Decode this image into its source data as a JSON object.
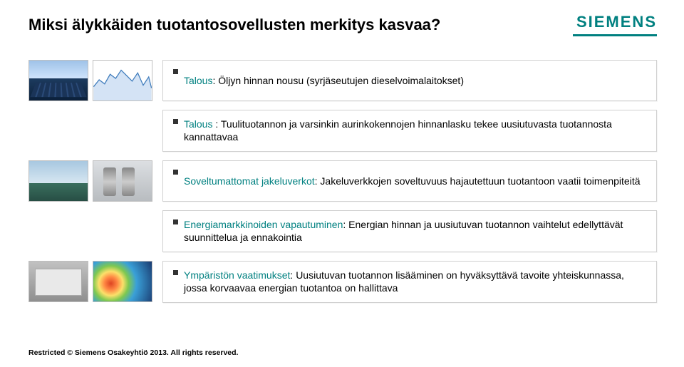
{
  "brand": "SIEMENS",
  "title": "Miksi älykkäiden tuotantosovellusten merkitys kasvaa?",
  "items": [
    {
      "lead": "Talous",
      "sep": ": ",
      "body": "Öljyn hinnan nousu (syrjäseutujen dieselvoimalaitokset)"
    },
    {
      "lead": "Talous ",
      "sep": ": ",
      "body": "Tuulituotannon ja varsinkin aurinkokennojen hinnanlasku tekee uusiutuvasta tuotannosta kannattavaa"
    },
    {
      "lead": "Soveltumattomat jakeluverkot",
      "sep": ": ",
      "body": "Jakeluverkkojen soveltuvuus hajautettuun tuotantoon vaatii toimenpiteitä"
    },
    {
      "lead": "Energiamarkkinoiden vapautuminen",
      "sep": ": ",
      "body": "Energian hinnan ja uusiutuvan tuotannon vaihtelut edellyttävät suunnittelua ja ennakointia"
    },
    {
      "lead": "Ympäristön vaatimukset",
      "sep": ": ",
      "body": "Uusiutuvan tuotannon lisääminen on hyväksyttävä tavoite yhteiskunnassa, jossa korvaavaa energian tuotantoa on hallittava"
    }
  ],
  "footer": "Restricted © Siemens Osakeyhtiö 2013. All rights reserved.",
  "chart": {
    "type": "area",
    "stroke_color": "#2d6fb3",
    "fill_color": "#9fc2e8",
    "background": "#ffffff",
    "points": [
      [
        0,
        38
      ],
      [
        8,
        28
      ],
      [
        16,
        34
      ],
      [
        24,
        20
      ],
      [
        32,
        26
      ],
      [
        40,
        14
      ],
      [
        48,
        22
      ],
      [
        56,
        30
      ],
      [
        64,
        18
      ],
      [
        72,
        36
      ],
      [
        80,
        24
      ],
      [
        84,
        40
      ]
    ],
    "ylim": [
      0,
      50
    ]
  },
  "colors": {
    "accent": "#008080",
    "text": "#000000",
    "card_border": "#d0d0d0",
    "bg": "#ffffff"
  }
}
